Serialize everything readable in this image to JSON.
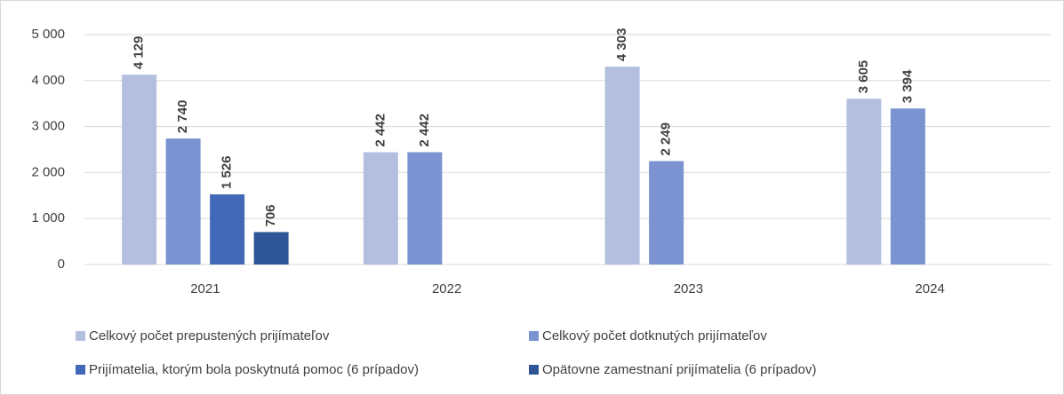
{
  "chart_data": {
    "type": "bar",
    "categories": [
      "2021",
      "2022",
      "2023",
      "2024"
    ],
    "series": [
      {
        "name": "Celkový počet prepustených prijímateľov",
        "color": "#b4bfe0",
        "values": [
          4129,
          2442,
          4303,
          3605
        ],
        "value_labels": [
          "4 129",
          "2 442",
          "4 303",
          "3 605"
        ]
      },
      {
        "name": "Celkový počet dotknutých prijímateľov",
        "color": "#7b93d1",
        "values": [
          2740,
          2442,
          2249,
          3394
        ],
        "value_labels": [
          "2 740",
          "2 442",
          "2 249",
          "3 394"
        ]
      },
      {
        "name": "Prijímatelia, ktorým bola poskytnutá pomoc (6 prípadov)",
        "color": "#4169b8",
        "values": [
          1526,
          null,
          null,
          null
        ],
        "value_labels": [
          "1 526",
          null,
          null,
          null
        ]
      },
      {
        "name": "Opätovne zamestnaní prijímatelia (6 prípadov)",
        "color": "#2e5596",
        "values": [
          706,
          null,
          null,
          null
        ],
        "value_labels": [
          "706",
          null,
          null,
          null
        ]
      }
    ],
    "ylim": [
      0,
      5000
    ],
    "yticks": [
      0,
      {
        "value": 1000,
        "label": "1 000"
      },
      {
        "value": 2000,
        "label": "2 000"
      },
      {
        "value": 3000,
        "label": "3 000"
      },
      {
        "value": 4000,
        "label": "4 000"
      },
      {
        "value": 5000,
        "label": "5 000"
      }
    ],
    "grid": true,
    "legend": "bottom"
  }
}
